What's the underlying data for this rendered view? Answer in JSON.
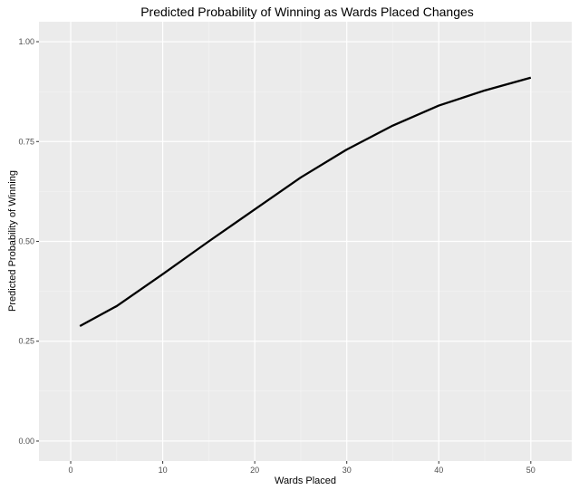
{
  "chart_data": {
    "type": "line",
    "title": "Predicted Probability of Winning as Wards Placed Changes",
    "xlabel": "Wards Placed",
    "ylabel": "Predicted Probability of Winning",
    "xlim": [
      -3.45,
      54.45
    ],
    "ylim": [
      -0.05,
      1.05
    ],
    "x_ticks": [
      0,
      10,
      20,
      30,
      40,
      50
    ],
    "x_tick_labels": [
      "0",
      "10",
      "20",
      "30",
      "40",
      "50"
    ],
    "y_ticks": [
      0,
      0.25,
      0.5,
      0.75,
      1.0
    ],
    "y_tick_labels": [
      "0.00",
      "0.25",
      "0.50",
      "0.75",
      "1.00"
    ],
    "grid": true,
    "legend": "none",
    "colors": {
      "panel_background": "#ebebeb",
      "grid_major": "#ffffff",
      "grid_minor": "#f5f5f5",
      "line": "#000000"
    },
    "series": [
      {
        "x": [
          1,
          5,
          10,
          15,
          20,
          25,
          30,
          35,
          40,
          45,
          50
        ],
        "values": [
          0.288,
          0.338,
          0.418,
          0.5,
          0.58,
          0.66,
          0.73,
          0.79,
          0.84,
          0.878,
          0.91
        ]
      }
    ]
  }
}
